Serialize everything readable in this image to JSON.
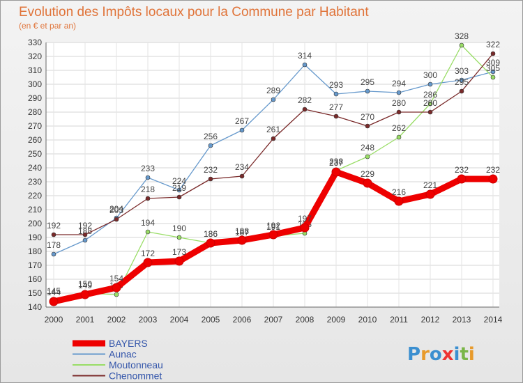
{
  "chart_data": {
    "type": "line",
    "title": "Evolution des Impôts locaux pour la Commune par Habitant",
    "subtitle": "(en € et par an)",
    "x": [
      "2000",
      "2001",
      "2002",
      "2003",
      "2004",
      "2005",
      "2006",
      "2007",
      "2008",
      "2009",
      "2010",
      "2011",
      "2012",
      "2013",
      "2014"
    ],
    "ylim": [
      140,
      330
    ],
    "yticks": [
      140,
      150,
      160,
      170,
      180,
      190,
      200,
      210,
      220,
      230,
      240,
      250,
      260,
      270,
      280,
      290,
      300,
      310,
      320,
      330
    ],
    "grid": true,
    "legend_position": "bottom-left",
    "series": [
      {
        "name": "BAYERS",
        "color": "#ee0000",
        "values": [
          144,
          149,
          154,
          172,
          173,
          186,
          188,
          192,
          197,
          237,
          229,
          216,
          221,
          232,
          232
        ]
      },
      {
        "name": "Aunac",
        "color": "#6699cc",
        "values": [
          178,
          188,
          204,
          233,
          224,
          256,
          267,
          289,
          314,
          293,
          295,
          294,
          300,
          303,
          309
        ]
      },
      {
        "name": "Moutonneau",
        "color": "#99dd66",
        "values": [
          145,
          150,
          149,
          194,
          190,
          186,
          187,
          191,
          193,
          238,
          248,
          262,
          286,
          328,
          305
        ]
      },
      {
        "name": "Chenommet",
        "color": "#7a2a2a",
        "values": [
          192,
          192,
          203,
          218,
          219,
          232,
          234,
          261,
          282,
          277,
          270,
          280,
          280,
          295,
          322
        ]
      }
    ]
  },
  "logo": {
    "text": "Proxiti"
  }
}
